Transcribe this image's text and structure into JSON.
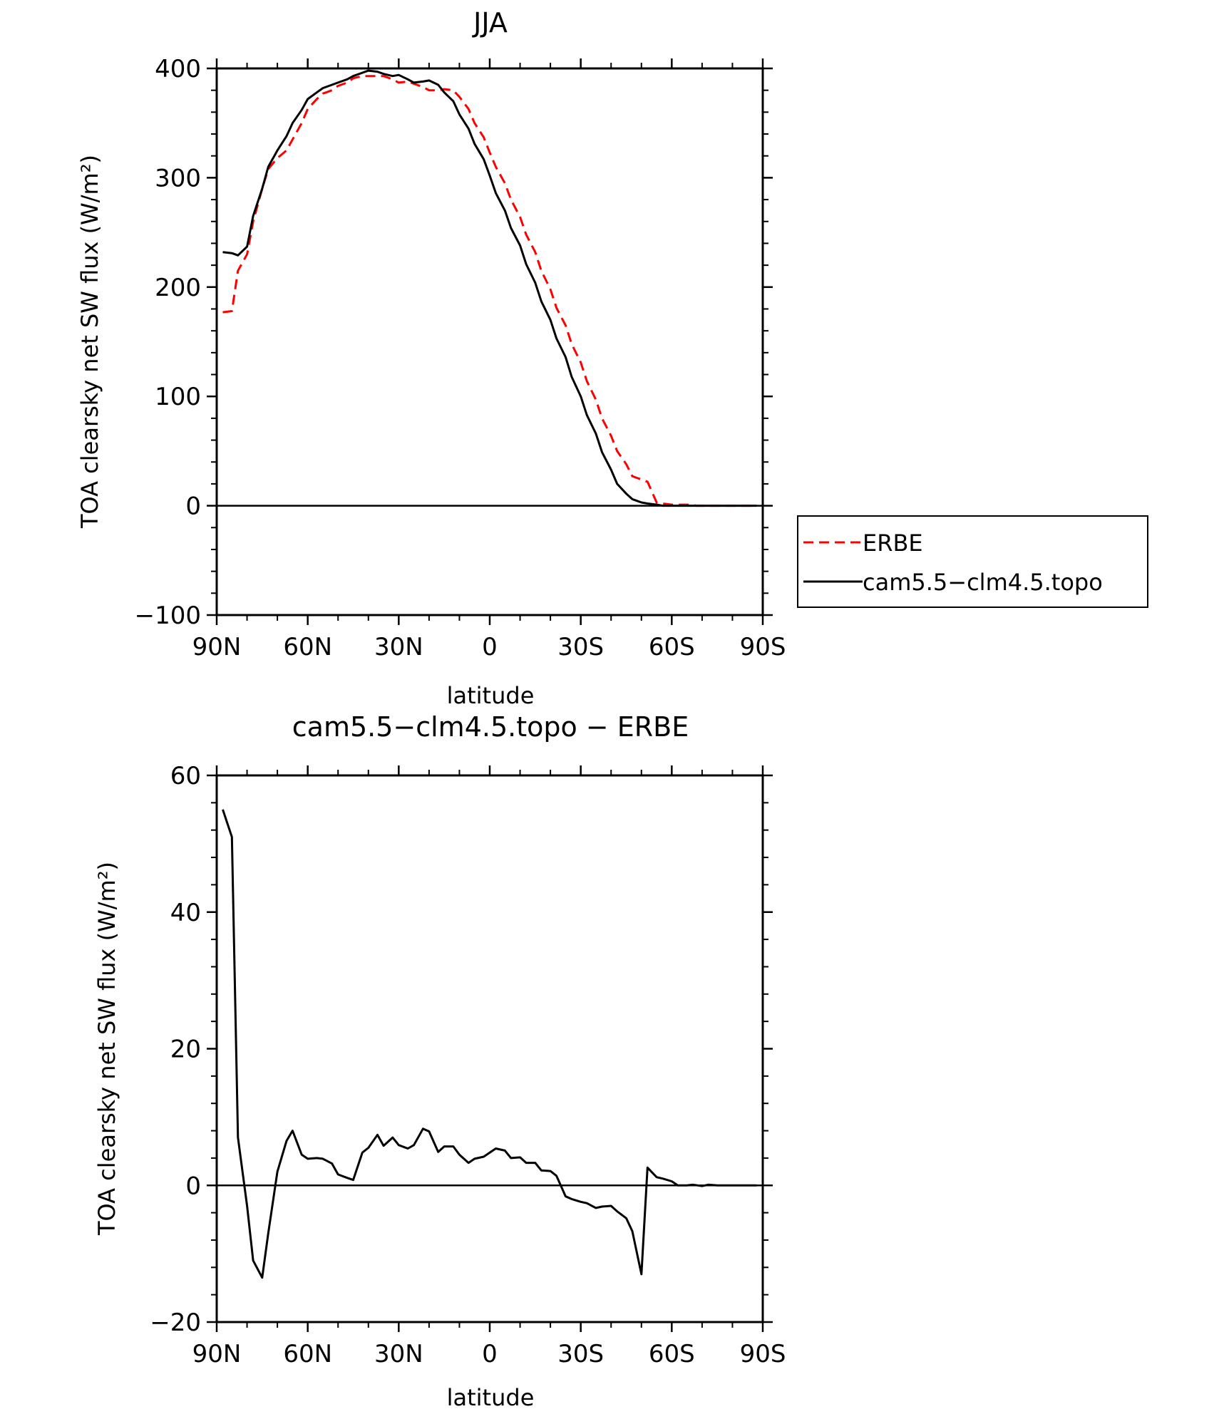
{
  "chart_data": [
    {
      "type": "line",
      "title": "JJA",
      "xlabel": "latitude",
      "ylabel": "TOA clearsky net SW flux (W/m²)",
      "xlim": [
        90,
        -90
      ],
      "ylim": [
        -100,
        400
      ],
      "x_ticks": [
        90,
        60,
        30,
        0,
        -30,
        -60,
        -90
      ],
      "x_tick_labels": [
        "90N",
        "60N",
        "30N",
        "0",
        "30S",
        "60S",
        "90S"
      ],
      "y_ticks": [
        -100,
        0,
        100,
        200,
        300,
        400
      ],
      "y_tick_labels": [
        "−100",
        "0",
        "100",
        "200",
        "300",
        "400"
      ],
      "grid": false,
      "legend": "right",
      "series": [
        {
          "name": "ERBE",
          "color": "#ff0000",
          "style": "dashed",
          "x": [
            88,
            85,
            83,
            80,
            78,
            75,
            73,
            70,
            67,
            65,
            62,
            60,
            57,
            55,
            52,
            50,
            47,
            45,
            42,
            40,
            37,
            35,
            32,
            30,
            27,
            25,
            22,
            20,
            17,
            15,
            12,
            10,
            7,
            5,
            2,
            0,
            -2,
            -5,
            -7,
            -10,
            -12,
            -15,
            -17,
            -20,
            -22,
            -25,
            -27,
            -30,
            -32,
            -35,
            -37,
            -40,
            -42,
            -45,
            -47,
            -50,
            -52,
            -55,
            -57,
            -60,
            -62,
            -65,
            -67,
            -68,
            -70,
            -72,
            -75,
            -77,
            -80,
            -82,
            -85,
            -88
          ],
          "y": [
            177,
            178,
            215,
            230,
            260,
            290,
            308,
            318,
            325,
            335,
            350,
            363,
            372,
            377,
            380,
            384,
            387,
            391,
            393,
            393,
            393,
            393,
            390,
            387,
            388,
            386,
            383,
            380,
            380,
            381,
            380,
            374,
            363,
            350,
            337,
            323,
            310,
            295,
            280,
            264,
            248,
            232,
            215,
            198,
            181,
            165,
            148,
            131,
            114,
            97,
            80,
            64,
            50,
            38,
            27,
            24,
            22,
            3,
            2,
            1,
            1,
            1,
            1,
            0,
            0,
            0,
            0,
            0,
            0,
            0,
            0,
            0
          ]
        },
        {
          "name": "cam5.5−clm4.5.topo",
          "color": "#000000",
          "style": "solid",
          "x": [
            88,
            85,
            83,
            80,
            78,
            75,
            73,
            70,
            67,
            65,
            62,
            60,
            57,
            55,
            52,
            50,
            47,
            45,
            42,
            40,
            37,
            35,
            32,
            30,
            27,
            25,
            22,
            20,
            17,
            15,
            12,
            10,
            7,
            5,
            2,
            0,
            -2,
            -5,
            -7,
            -10,
            -12,
            -15,
            -17,
            -20,
            -22,
            -25,
            -27,
            -30,
            -32,
            -35,
            -37,
            -40,
            -42,
            -45,
            -47,
            -50,
            -52,
            -55,
            -57,
            -60,
            -62,
            -65,
            -67,
            -70,
            -72,
            -75,
            -77,
            -80,
            -82,
            -85,
            -88
          ],
          "y": [
            232,
            231,
            229,
            237,
            265,
            290,
            310,
            325,
            338,
            350,
            362,
            372,
            378,
            382,
            385,
            387,
            390,
            393,
            396,
            398,
            397,
            395,
            393,
            394,
            390,
            387,
            388,
            389,
            385,
            378,
            370,
            358,
            345,
            331,
            317,
            302,
            286,
            270,
            254,
            238,
            221,
            204,
            187,
            170,
            153,
            136,
            118,
            100,
            83,
            66,
            49,
            33,
            20,
            11,
            6,
            3,
            2,
            1,
            0,
            0,
            0,
            0,
            0,
            0,
            0,
            0,
            0,
            0,
            0,
            0,
            0
          ]
        }
      ]
    },
    {
      "type": "line",
      "title": "cam5.5−clm4.5.topo − ERBE",
      "xlabel": "latitude",
      "ylabel": "TOA clearsky net SW flux (W/m²)",
      "xlim": [
        90,
        -90
      ],
      "ylim": [
        -20,
        60
      ],
      "x_ticks": [
        90,
        60,
        30,
        0,
        -30,
        -60,
        -90
      ],
      "x_tick_labels": [
        "90N",
        "60N",
        "30N",
        "0",
        "30S",
        "60S",
        "90S"
      ],
      "y_ticks": [
        -20,
        0,
        20,
        40,
        60
      ],
      "y_tick_labels": [
        "−20",
        "0",
        "20",
        "40",
        "60"
      ],
      "grid": false,
      "series": [
        {
          "color": "#000000",
          "style": "solid",
          "x": [
            88,
            85,
            83,
            80,
            78,
            75,
            73,
            70,
            67,
            65,
            62,
            60,
            57,
            55,
            52,
            50,
            47,
            45,
            42,
            40,
            37,
            35,
            32,
            30,
            27,
            25,
            22,
            20,
            17,
            15,
            12,
            10,
            7,
            5,
            2,
            0,
            -2,
            -5,
            -7,
            -10,
            -12,
            -15,
            -17,
            -20,
            -22,
            -25,
            -27,
            -30,
            -32,
            -35,
            -37,
            -40,
            -42,
            -45,
            -47,
            -50,
            -52,
            -55,
            -57,
            -60,
            -62,
            -65,
            -67,
            -70,
            -72,
            -75,
            -77,
            -80,
            -82,
            -85,
            -88
          ],
          "y": [
            55,
            51,
            7,
            -3,
            -11,
            -13.5,
            -7,
            2,
            6.5,
            8,
            4.5,
            3.9,
            4.0,
            3.9,
            3.2,
            1.6,
            1.1,
            0.8,
            4.8,
            5.5,
            7.4,
            5.8,
            7.0,
            5.9,
            5.4,
            5.9,
            8.3,
            7.9,
            4.9,
            5.7,
            5.7,
            4.5,
            3.3,
            3.9,
            4.2,
            4.8,
            5.4,
            5.1,
            4.0,
            4.1,
            3.3,
            3.3,
            2.2,
            2.1,
            1.4,
            -1.6,
            -2.0,
            -2.4,
            -2.6,
            -3.3,
            -3.1,
            -3.0,
            -3.8,
            -4.8,
            -6.7,
            -13,
            2.6,
            1.2,
            1.0,
            0.6,
            0.0,
            0.0,
            0.1,
            -0.1,
            0.1,
            0.0,
            0.0,
            0.0,
            0.0,
            0.0,
            0.0
          ]
        }
      ]
    }
  ]
}
